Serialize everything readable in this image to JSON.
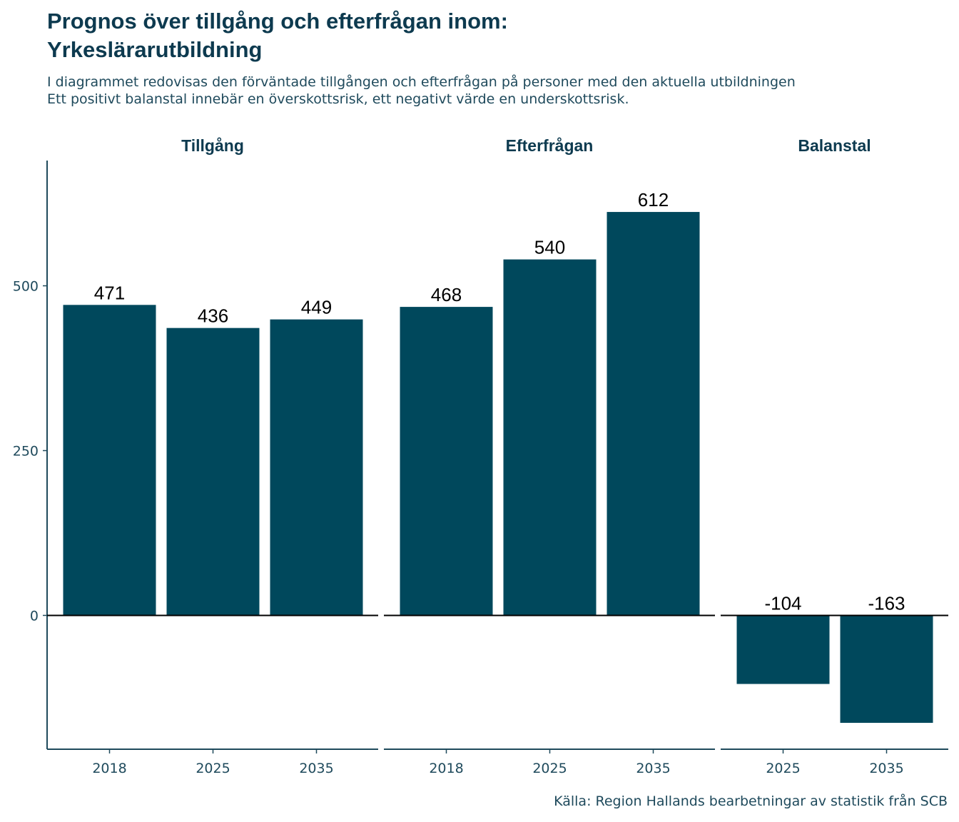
{
  "chart_data": {
    "type": "bar",
    "title": [
      "Prognos över tillgång och efterfrågan inom:",
      "Yrkeslärarutbildning"
    ],
    "subtitle": [
      "I diagrammet redovisas den förväntade tillgången och efterfrågan på personer med den aktuella utbildningen",
      "Ett positivt balanstal innebär en överskottsrisk, ett negativt värde en underskottsrisk."
    ],
    "caption": "Källa: Region Hallands bearbetningar av statistik från SCB",
    "ylim": [
      -203,
      690
    ],
    "yticks": [
      0,
      250,
      500
    ],
    "grid": false,
    "bar_color": "#00485c",
    "facets": [
      {
        "name": "Tillgång",
        "categories": [
          "2018",
          "2025",
          "2035"
        ],
        "values": [
          471,
          436,
          449
        ]
      },
      {
        "name": "Efterfrågan",
        "categories": [
          "2018",
          "2025",
          "2035"
        ],
        "values": [
          468,
          540,
          612
        ]
      },
      {
        "name": "Balanstal",
        "categories": [
          "2025",
          "2035"
        ],
        "values": [
          -104,
          -163
        ]
      }
    ]
  }
}
